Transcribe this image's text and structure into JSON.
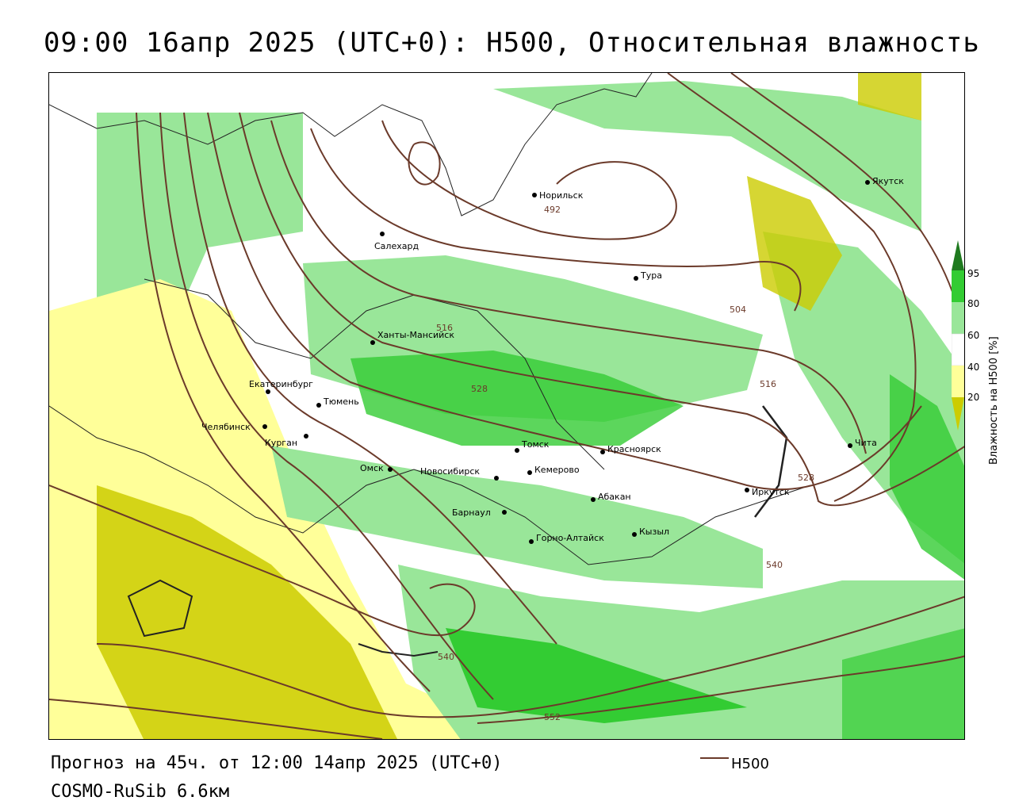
{
  "title": "09:00 16апр 2025 (UTC+0): H500, Относительная влажность",
  "footer": {
    "forecast": "Прогноз на 45ч. от 12:00 14апр 2025 (UTC+0)",
    "model": "COSMO-RuSib 6.6км"
  },
  "legend": {
    "line_label": "H500",
    "line_color": "#6b3a2a"
  },
  "colorbar": {
    "title": "Влажность на H500 [%]",
    "ticks": [
      "95",
      "80",
      "60",
      "40",
      "20"
    ],
    "colors": [
      "#1f7a1f",
      "#33cc33",
      "#99e699",
      "#ffffff",
      "#ffff99",
      "#cccc00"
    ]
  },
  "cities": [
    {
      "name": "Норильск"
    },
    {
      "name": "Якутск"
    },
    {
      "name": "Салехард"
    },
    {
      "name": "Тура"
    },
    {
      "name": "Ханты-Мансийск"
    },
    {
      "name": "Екатеринбург"
    },
    {
      "name": "Тюмень"
    },
    {
      "name": "Челябинск"
    },
    {
      "name": "Курган"
    },
    {
      "name": "Омск"
    },
    {
      "name": "Новосибирск"
    },
    {
      "name": "Томск"
    },
    {
      "name": "Кемерово"
    },
    {
      "name": "Красноярск"
    },
    {
      "name": "Барнаул"
    },
    {
      "name": "Абакан"
    },
    {
      "name": "Иркутск"
    },
    {
      "name": "Чита"
    },
    {
      "name": "Кызыл"
    },
    {
      "name": "Горно-Алтайск"
    }
  ],
  "contour_labels": [
    "492",
    "504",
    "516",
    "528",
    "516",
    "528",
    "540",
    "540",
    "552"
  ]
}
